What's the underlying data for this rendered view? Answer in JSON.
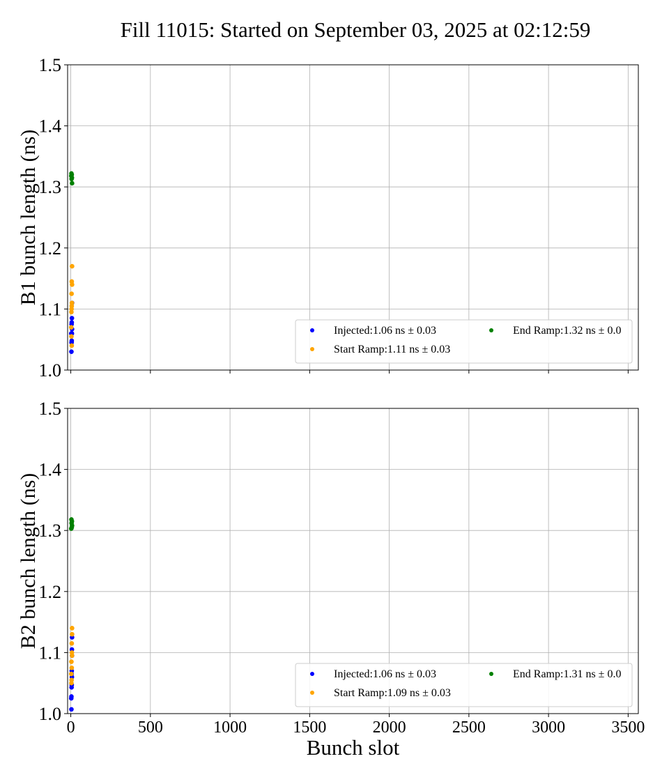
{
  "title": "Fill 11015: Started on September 03, 2025 at 02:12:59",
  "colors": {
    "Injected": "#0000ff",
    "Start Ramp": "#ffa500",
    "End Ramp": "#008000",
    "grid": "#b0b0b0"
  },
  "chart_data": [
    {
      "type": "scatter",
      "ylabel": "B1 bunch length (ns)",
      "xlabel": "",
      "xlim": [
        -20,
        3564
      ],
      "ylim": [
        1.0,
        1.5
      ],
      "xticks": [
        "0",
        "500",
        "1000",
        "1500",
        "2000",
        "2500",
        "3000",
        "3500"
      ],
      "yticks": [
        "1.0",
        "1.1",
        "1.2",
        "1.3",
        "1.4",
        "1.5"
      ],
      "grid": true,
      "legend_position": "lower-right",
      "series": [
        {
          "name": "Injected:1.06 ns ± 0.03",
          "key": "Injected",
          "x": [
            4,
            5,
            6,
            3,
            7,
            8,
            5,
            6,
            7,
            8
          ],
          "y": [
            1.03,
            1.045,
            1.048,
            1.06,
            1.06,
            1.067,
            1.075,
            1.078,
            1.085,
            1.11
          ]
        },
        {
          "name": "Start Ramp:1.11 ns ± 0.03",
          "key": "Start Ramp",
          "x": [
            8,
            6,
            8,
            5,
            7,
            6,
            5,
            4,
            3,
            4,
            6
          ],
          "y": [
            1.17,
            1.145,
            1.14,
            1.125,
            1.11,
            1.105,
            1.1,
            1.095,
            1.07,
            1.055,
            1.04
          ]
        },
        {
          "name": "End Ramp:1.32 ns ± 0.0",
          "key": "End Ramp",
          "x": [
            4,
            6,
            3,
            7,
            5,
            8
          ],
          "y": [
            1.322,
            1.32,
            1.318,
            1.315,
            1.313,
            1.306
          ]
        }
      ]
    },
    {
      "type": "scatter",
      "ylabel": "B2 bunch length (ns)",
      "xlabel": "Bunch slot",
      "xlim": [
        -20,
        3564
      ],
      "ylim": [
        1.0,
        1.5
      ],
      "xticks": [
        "0",
        "500",
        "1000",
        "1500",
        "2000",
        "2500",
        "3000",
        "3500"
      ],
      "yticks": [
        "1.0",
        "1.1",
        "1.2",
        "1.3",
        "1.4",
        "1.5"
      ],
      "grid": true,
      "legend_position": "lower-right",
      "series": [
        {
          "name": "Injected:1.06 ns ± 0.03",
          "key": "Injected",
          "x": [
            4,
            3,
            4,
            5,
            6,
            7,
            5,
            6,
            8,
            7,
            8
          ],
          "y": [
            1.007,
            1.025,
            1.028,
            1.043,
            1.047,
            1.06,
            1.065,
            1.07,
            1.095,
            1.105,
            1.125
          ]
        },
        {
          "name": "Start Ramp:1.09 ns ± 0.03",
          "key": "Start Ramp",
          "x": [
            8,
            8,
            6,
            7,
            8,
            4,
            6,
            3,
            5,
            4
          ],
          "y": [
            1.14,
            1.13,
            1.115,
            1.1,
            1.095,
            1.085,
            1.075,
            1.065,
            1.055,
            1.05
          ]
        },
        {
          "name": "End Ramp:1.31 ns ± 0.0",
          "key": "End Ramp",
          "x": [
            4,
            7,
            5,
            8,
            6,
            3
          ],
          "y": [
            1.318,
            1.315,
            1.312,
            1.308,
            1.305,
            1.303
          ]
        }
      ]
    }
  ]
}
